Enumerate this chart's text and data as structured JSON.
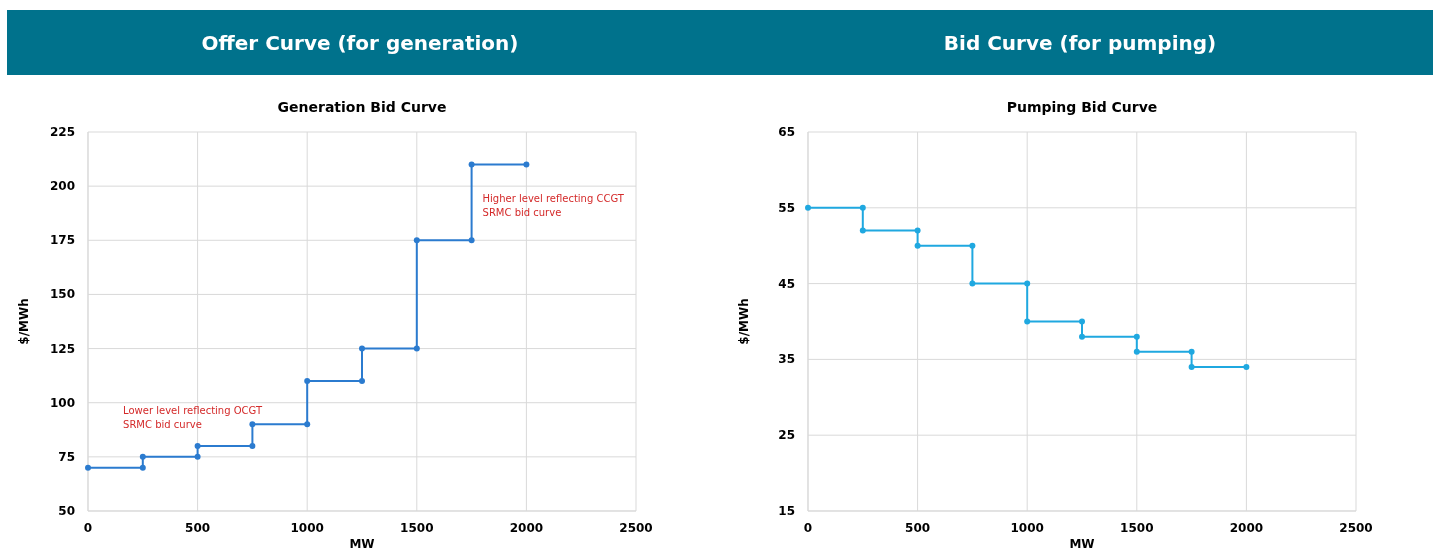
{
  "chart_data": [
    {
      "type": "line",
      "title": "Offer Curve (for generation)",
      "subtitle": "Generation Bid Curve",
      "xlabel": "MW",
      "ylabel": "$/MWh",
      "xlim": [
        0,
        2500
      ],
      "xticks": [
        0,
        500,
        1000,
        1500,
        2000,
        2500
      ],
      "ylim": [
        50,
        225
      ],
      "yticks": [
        50,
        75,
        100,
        125,
        150,
        175,
        200,
        225
      ],
      "grid": true,
      "marker": "circle",
      "line_style": "solid",
      "series": [
        {
          "color": "#2b7bcf",
          "x": [
            0,
            250,
            250,
            500,
            500,
            750,
            750,
            1000,
            1000,
            1250,
            1250,
            1500,
            1500,
            1750,
            1750,
            2000
          ],
          "values": [
            70,
            70,
            75,
            75,
            80,
            80,
            90,
            90,
            110,
            110,
            125,
            125,
            175,
            175,
            210,
            210
          ]
        }
      ],
      "annotations": [
        "Lower level reflecting OCGT SRMC bid curve",
        "Higher level reflecting CCGT SRMC bid curve"
      ]
    },
    {
      "type": "line",
      "title": "Bid Curve (for pumping)",
      "subtitle": "Pumping Bid Curve",
      "xlabel": "MW",
      "ylabel": "$/MWh",
      "xlim": [
        0,
        2500
      ],
      "xticks": [
        0,
        500,
        1000,
        1500,
        2000,
        2500
      ],
      "ylim": [
        15,
        65
      ],
      "yticks": [
        15,
        25,
        35,
        45,
        55,
        65
      ],
      "grid": true,
      "marker": "circle",
      "line_style": "solid",
      "series": [
        {
          "color": "#1fa8e0",
          "x": [
            0,
            250,
            250,
            500,
            500,
            750,
            750,
            1000,
            1000,
            1250,
            1250,
            1500,
            1500,
            1750,
            1750,
            2000
          ],
          "values": [
            55,
            55,
            52,
            52,
            50,
            50,
            45,
            45,
            40,
            40,
            38,
            38,
            36,
            36,
            34,
            34
          ]
        }
      ]
    }
  ]
}
